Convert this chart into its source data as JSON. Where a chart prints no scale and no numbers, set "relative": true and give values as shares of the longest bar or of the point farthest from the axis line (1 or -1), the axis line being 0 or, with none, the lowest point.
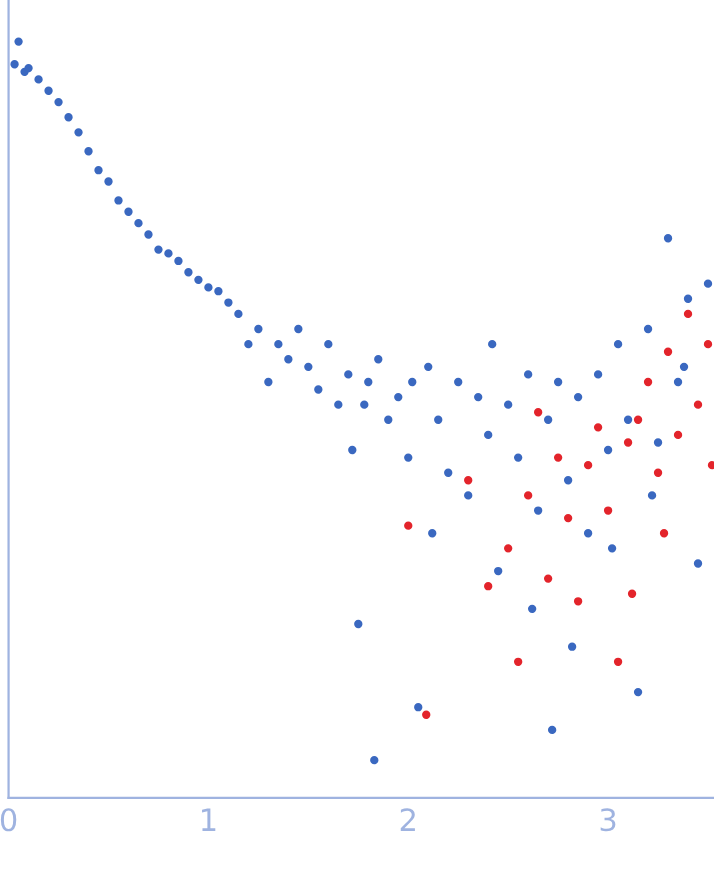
{
  "chart_data": {
    "type": "scatter",
    "relative": true,
    "xlim": [
      0,
      3.53
    ],
    "xticks": [
      0,
      1,
      2,
      3
    ],
    "grid": false,
    "legend": false,
    "marker": "circle",
    "series": [
      {
        "color": "#3a68c0",
        "x": [
          0.03,
          0.05,
          0.08,
          0.1,
          0.15,
          0.2,
          0.25,
          0.3,
          0.35,
          0.4,
          0.45,
          0.5,
          0.55,
          0.6,
          0.65,
          0.7,
          0.75,
          0.8,
          0.85,
          0.9,
          0.95,
          1.0,
          1.05,
          1.1,
          1.15,
          1.2,
          1.25,
          1.3,
          1.35,
          1.4,
          1.45,
          1.5,
          1.55,
          1.6,
          1.65,
          1.7,
          1.72,
          1.75,
          1.78,
          1.8,
          1.83,
          1.85,
          1.9,
          1.95,
          2.0,
          2.02,
          2.05,
          2.1,
          2.12,
          2.15,
          2.2,
          2.25,
          2.3,
          2.35,
          2.4,
          2.42,
          2.45,
          2.5,
          2.55,
          2.6,
          2.62,
          2.65,
          2.7,
          2.72,
          2.75,
          2.8,
          2.82,
          2.85,
          2.9,
          2.95,
          3.0,
          3.02,
          3.05,
          3.1,
          3.15,
          3.2,
          3.22,
          3.25,
          3.3,
          3.35,
          3.38,
          3.4,
          3.45,
          3.5
        ],
        "values": [
          0.97,
          1.0,
          0.96,
          0.965,
          0.95,
          0.935,
          0.92,
          0.9,
          0.88,
          0.855,
          0.83,
          0.815,
          0.79,
          0.775,
          0.76,
          0.745,
          0.725,
          0.72,
          0.71,
          0.695,
          0.685,
          0.675,
          0.67,
          0.655,
          0.64,
          0.6,
          0.62,
          0.55,
          0.6,
          0.58,
          0.62,
          0.57,
          0.54,
          0.6,
          0.52,
          0.56,
          0.46,
          0.23,
          0.52,
          0.55,
          0.05,
          0.58,
          0.5,
          0.53,
          0.45,
          0.55,
          0.12,
          0.57,
          0.35,
          0.5,
          0.43,
          0.55,
          0.4,
          0.53,
          0.48,
          0.6,
          0.3,
          0.52,
          0.45,
          0.56,
          0.25,
          0.38,
          0.5,
          0.09,
          0.55,
          0.42,
          0.2,
          0.53,
          0.35,
          0.56,
          0.46,
          0.33,
          0.6,
          0.5,
          0.14,
          0.62,
          0.4,
          0.47,
          0.74,
          0.55,
          0.57,
          0.66,
          0.31,
          0.68
        ]
      },
      {
        "color": "#e3242b",
        "x": [
          2.0,
          2.09,
          2.3,
          2.4,
          2.5,
          2.55,
          2.6,
          2.65,
          2.7,
          2.75,
          2.8,
          2.85,
          2.9,
          2.95,
          3.0,
          3.05,
          3.1,
          3.12,
          3.15,
          3.2,
          3.25,
          3.28,
          3.3,
          3.35,
          3.4,
          3.45,
          3.5,
          3.52
        ],
        "values": [
          0.36,
          0.11,
          0.42,
          0.28,
          0.33,
          0.18,
          0.4,
          0.51,
          0.29,
          0.45,
          0.37,
          0.26,
          0.44,
          0.49,
          0.38,
          0.18,
          0.47,
          0.27,
          0.5,
          0.55,
          0.43,
          0.35,
          0.59,
          0.48,
          0.64,
          0.52,
          0.6,
          0.44
        ]
      }
    ]
  }
}
